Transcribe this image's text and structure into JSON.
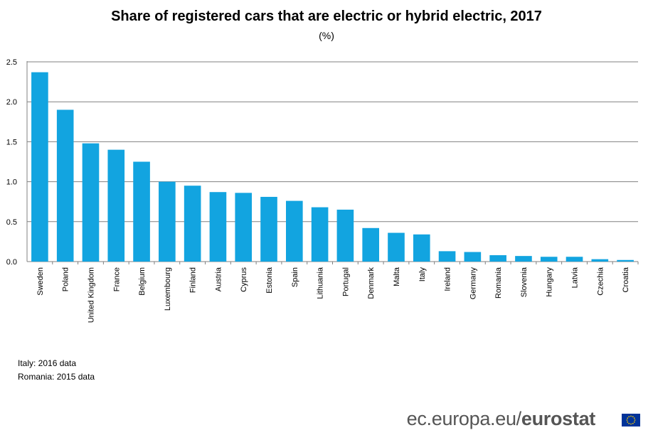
{
  "chart_data": {
    "type": "bar",
    "title": "Share of registered cars that are electric or hybrid electric, 2017",
    "subtitle": "(%)",
    "xlabel": "",
    "ylabel": "",
    "ylim": [
      0,
      2.5
    ],
    "yticks": [
      "0.0",
      "0.5",
      "1.0",
      "1.5",
      "2.0",
      "2.5"
    ],
    "grid": true,
    "colors": {
      "bar": "#12A4E0",
      "grid": "#808080",
      "axis": "#808080"
    },
    "categories": [
      "Sweden",
      "Poland",
      "United Kingdom",
      "France",
      "Belgium",
      "Luxembourg",
      "Finland",
      "Austria",
      "Cyprus",
      "Estonia",
      "Spain",
      "Lithuania",
      "Portugal",
      "Denmark",
      "Malta",
      "Italy",
      "Ireland",
      "Germany",
      "Romania",
      "Slovenia",
      "Hungary",
      "Latvia",
      "Czechia",
      "Croatia"
    ],
    "values": [
      2.37,
      1.9,
      1.48,
      1.4,
      1.25,
      1.0,
      0.95,
      0.87,
      0.86,
      0.81,
      0.76,
      0.68,
      0.65,
      0.42,
      0.36,
      0.34,
      0.13,
      0.12,
      0.08,
      0.07,
      0.06,
      0.06,
      0.03,
      0.02
    ]
  },
  "notes": [
    "Italy: 2016 data",
    "Romania: 2015 data"
  ],
  "branding": {
    "prefix": "ec.europa.eu/",
    "bold": "eurostat",
    "flag_icon": "eu-flag-icon"
  }
}
